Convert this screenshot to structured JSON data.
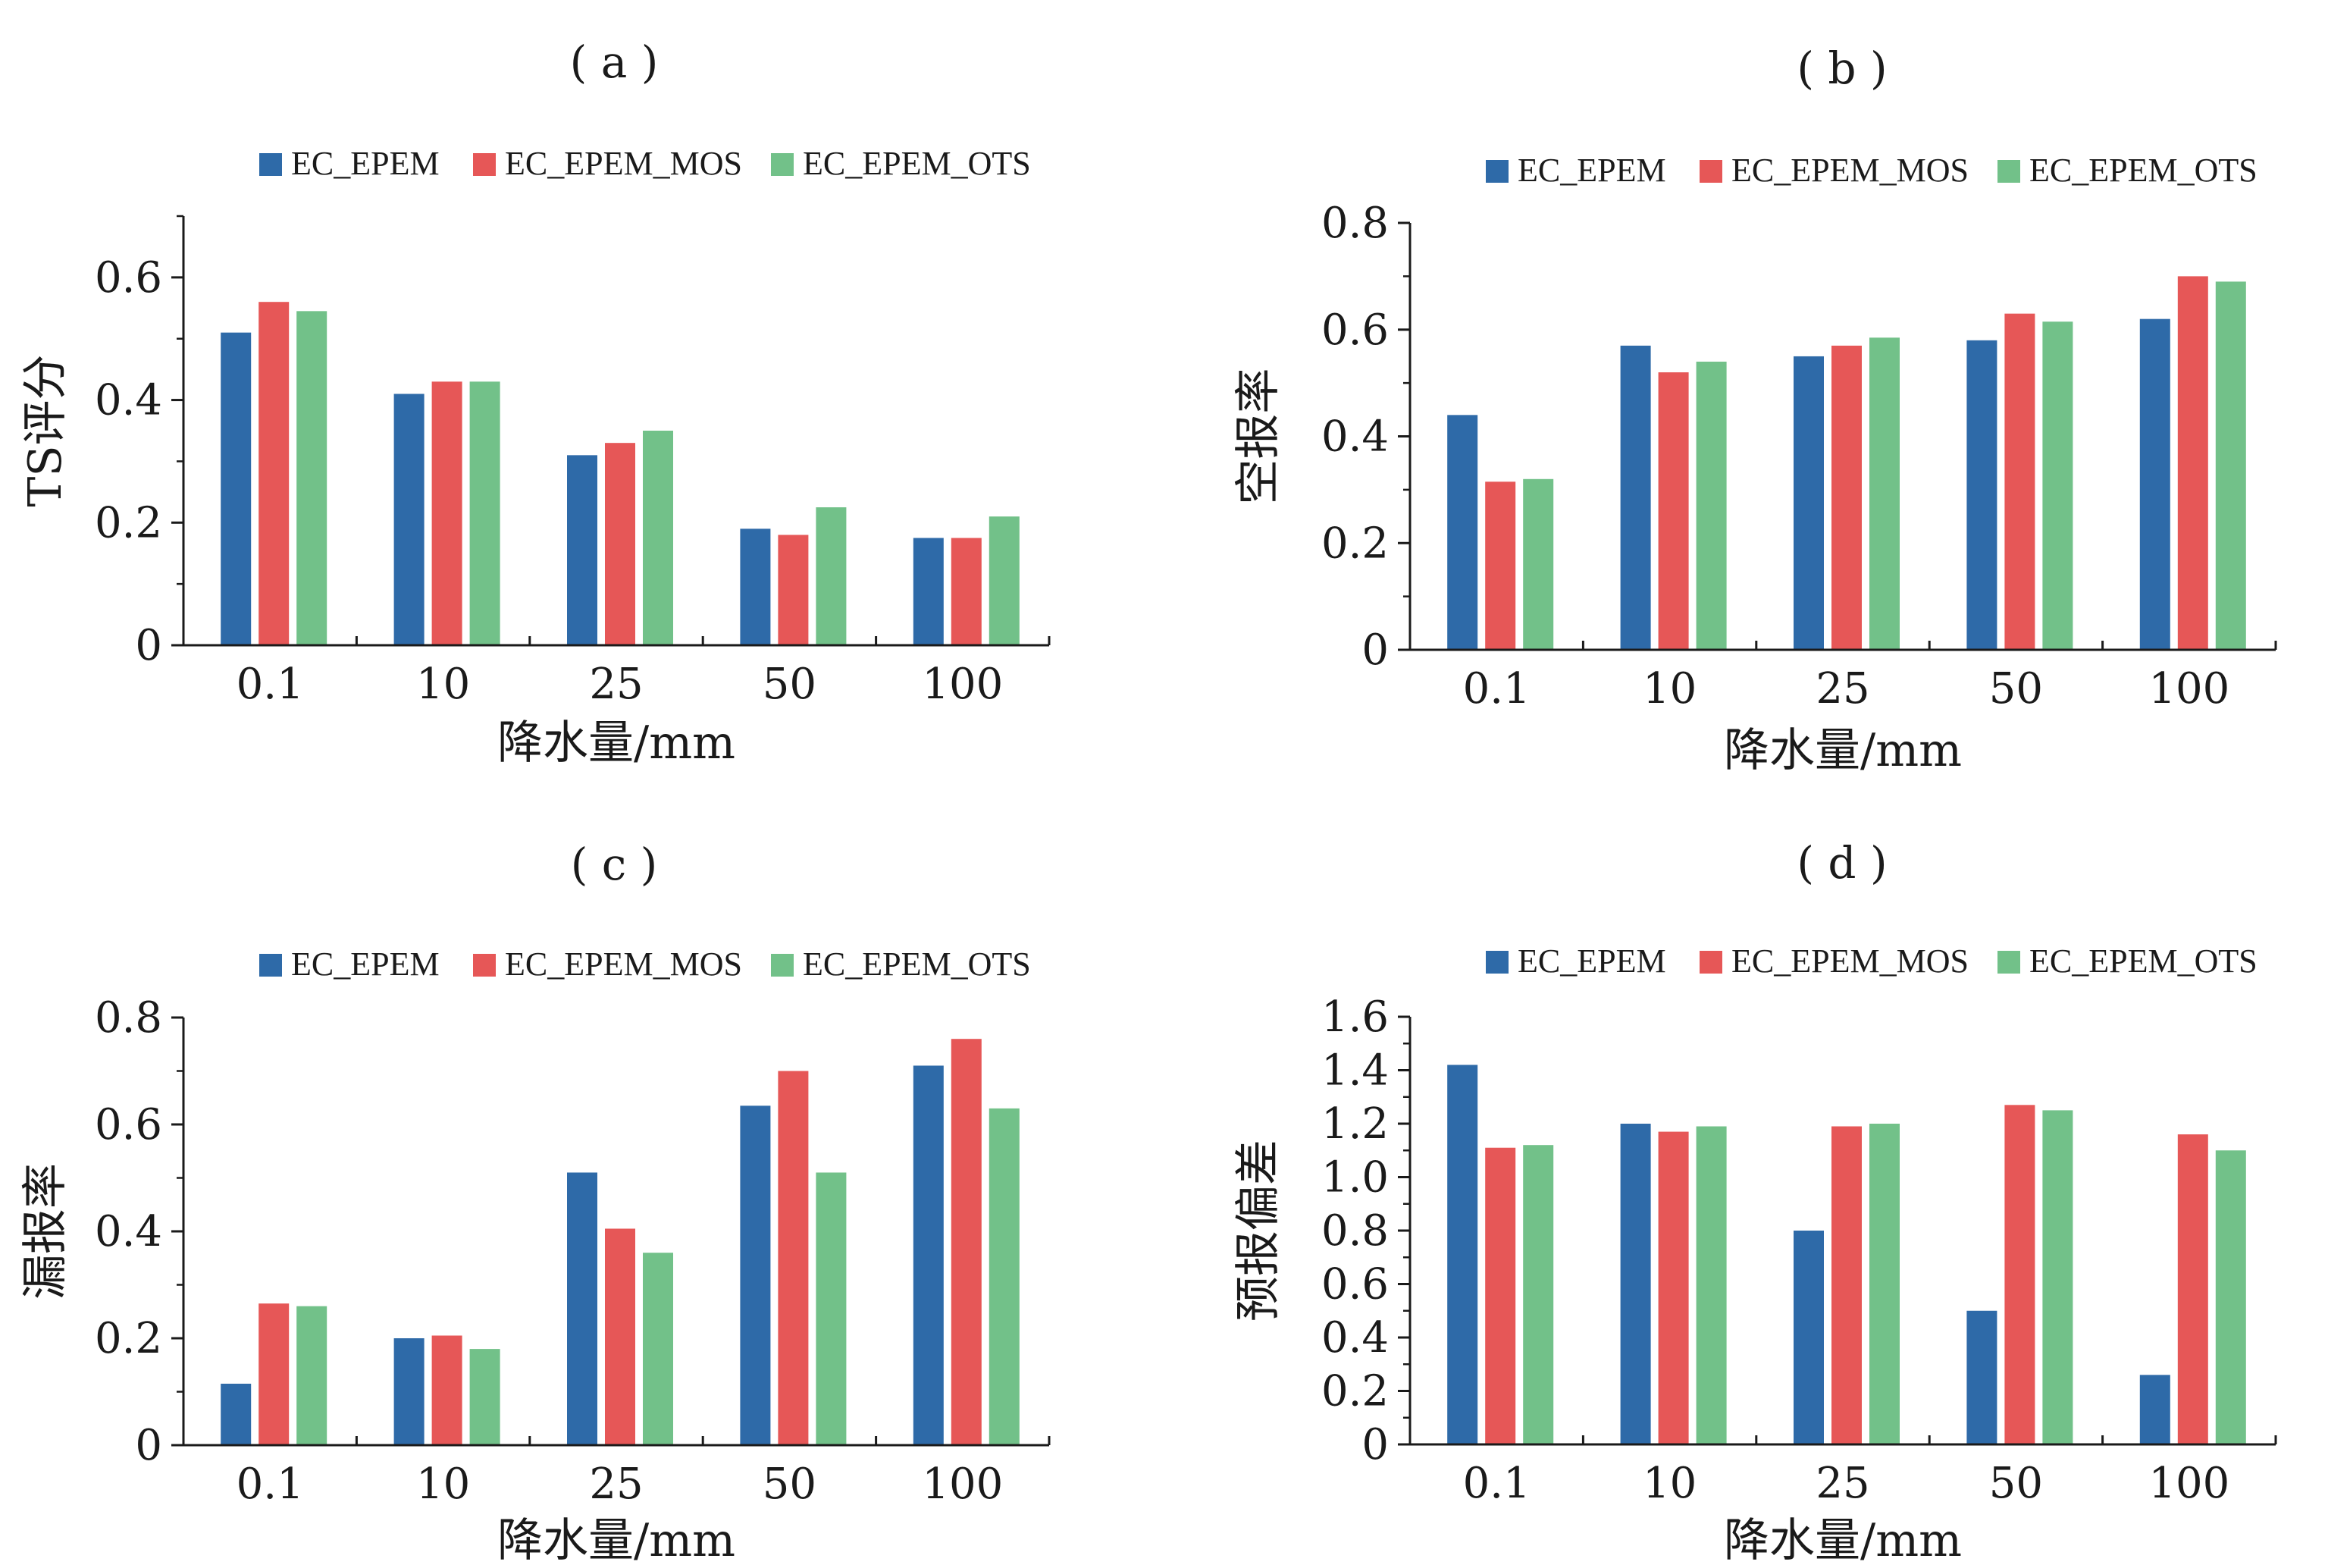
{
  "colors": {
    "series": [
      "#2e6aa8",
      "#e65757",
      "#72c189"
    ],
    "axis": "#1a1a1a"
  },
  "legend_names": [
    "EC_EPEM",
    "EC_EPEM_MOS",
    "EC_EPEM_OTS"
  ],
  "chart_data": [
    {
      "type": "bar",
      "panel_label": "( a )",
      "categories": [
        "0.1",
        "10",
        "25",
        "50",
        "100"
      ],
      "series": [
        {
          "name": "EC_EPEM",
          "values": [
            0.51,
            0.41,
            0.31,
            0.19,
            0.175
          ]
        },
        {
          "name": "EC_EPEM_MOS",
          "values": [
            0.56,
            0.43,
            0.33,
            0.18,
            0.175
          ]
        },
        {
          "name": "EC_EPEM_OTS",
          "values": [
            0.545,
            0.43,
            0.35,
            0.225,
            0.21
          ]
        }
      ],
      "title": "",
      "xlabel": "降水量/mm",
      "ylabel": "TS评分",
      "ylim": [
        0,
        0.7
      ],
      "yticks": [
        "0",
        "0.2",
        "0.4",
        "0.6"
      ],
      "legend": "top",
      "grid": false
    },
    {
      "type": "bar",
      "panel_label": "( b )",
      "categories": [
        "0.1",
        "10",
        "25",
        "50",
        "100"
      ],
      "series": [
        {
          "name": "EC_EPEM",
          "values": [
            0.44,
            0.57,
            0.55,
            0.58,
            0.62
          ]
        },
        {
          "name": "EC_EPEM_MOS",
          "values": [
            0.315,
            0.52,
            0.57,
            0.63,
            0.7
          ]
        },
        {
          "name": "EC_EPEM_OTS",
          "values": [
            0.32,
            0.54,
            0.585,
            0.615,
            0.69
          ]
        }
      ],
      "title": "",
      "xlabel": "降水量/mm",
      "ylabel": "空报率",
      "ylim": [
        0,
        0.8
      ],
      "yticks": [
        "0",
        "0.2",
        "0.4",
        "0.6",
        "0.8"
      ],
      "legend": "top",
      "grid": false
    },
    {
      "type": "bar",
      "panel_label": "( c )",
      "categories": [
        "0.1",
        "10",
        "25",
        "50",
        "100"
      ],
      "series": [
        {
          "name": "EC_EPEM",
          "values": [
            0.115,
            0.2,
            0.51,
            0.635,
            0.71
          ]
        },
        {
          "name": "EC_EPEM_MOS",
          "values": [
            0.265,
            0.205,
            0.405,
            0.7,
            0.76
          ]
        },
        {
          "name": "EC_EPEM_OTS",
          "values": [
            0.26,
            0.18,
            0.36,
            0.51,
            0.63
          ]
        }
      ],
      "title": "",
      "xlabel": "降水量/mm",
      "ylabel": "漏报率",
      "ylim": [
        0,
        0.8
      ],
      "yticks": [
        "0",
        "0.2",
        "0.4",
        "0.6",
        "0.8"
      ],
      "legend": "top",
      "grid": false
    },
    {
      "type": "bar",
      "panel_label": "( d )",
      "categories": [
        "0.1",
        "10",
        "25",
        "50",
        "100"
      ],
      "series": [
        {
          "name": "EC_EPEM",
          "values": [
            1.42,
            1.2,
            0.8,
            0.5,
            0.26
          ]
        },
        {
          "name": "EC_EPEM_MOS",
          "values": [
            1.11,
            1.17,
            1.19,
            1.27,
            1.16
          ]
        },
        {
          "name": "EC_EPEM_OTS",
          "values": [
            1.12,
            1.19,
            1.2,
            1.25,
            1.1
          ]
        }
      ],
      "title": "",
      "xlabel": "降水量/mm",
      "ylabel": "预报偏差",
      "ylim": [
        0,
        1.6
      ],
      "yticks": [
        "0",
        "0.2",
        "0.4",
        "0.6",
        "0.8",
        "1.0",
        "1.2",
        "1.4",
        "1.6"
      ],
      "legend": "top",
      "grid": false
    }
  ]
}
